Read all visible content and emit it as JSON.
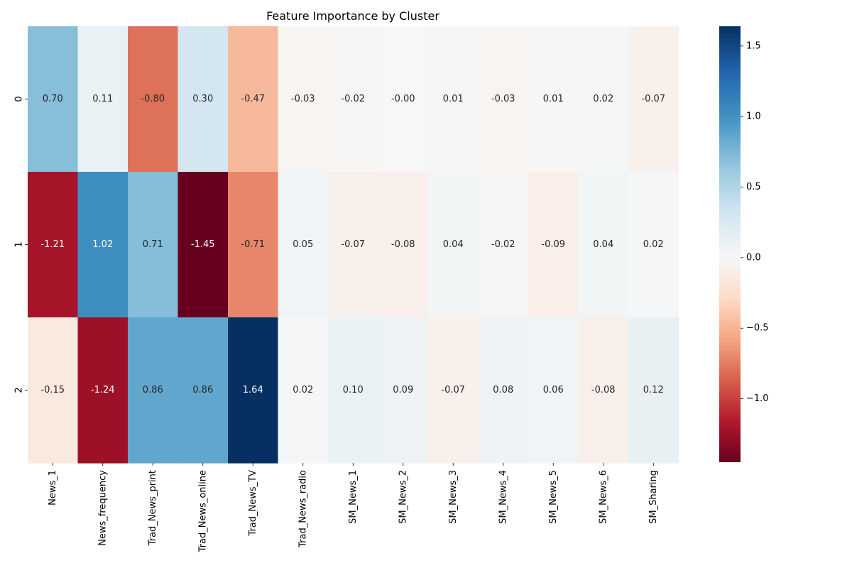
{
  "chart_data": {
    "type": "heatmap",
    "title": "Feature Importance by Cluster",
    "xlabel": "",
    "ylabel": "",
    "columns": [
      "News_1",
      "News_frequency",
      "Trad_News_print",
      "Trad_News_online",
      "Trad_News_TV",
      "Trad_News_radio",
      "SM_News_1",
      "SM_News_2",
      "SM_News_3",
      "SM_News_4",
      "SM_News_5",
      "SM_News_6",
      "SM_Sharing"
    ],
    "rows": [
      "0",
      "1",
      "2"
    ],
    "values": [
      [
        0.7,
        0.11,
        -0.8,
        0.3,
        -0.47,
        -0.03,
        -0.02,
        -0.0,
        0.01,
        -0.03,
        0.01,
        0.02,
        -0.07
      ],
      [
        -1.21,
        1.02,
        0.71,
        -1.45,
        -0.71,
        0.05,
        -0.07,
        -0.08,
        0.04,
        -0.02,
        -0.09,
        0.04,
        0.02
      ],
      [
        -0.15,
        -1.24,
        0.86,
        0.86,
        1.64,
        0.02,
        0.1,
        0.09,
        -0.07,
        0.08,
        0.06,
        -0.08,
        0.12
      ]
    ],
    "annotations": [
      [
        "0.70",
        "0.11",
        "-0.80",
        "0.30",
        "-0.47",
        "-0.03",
        "-0.02",
        "-0.00",
        "0.01",
        "-0.03",
        "0.01",
        "0.02",
        "-0.07"
      ],
      [
        "-1.21",
        "1.02",
        "0.71",
        "-1.45",
        "-0.71",
        "0.05",
        "-0.07",
        "-0.08",
        "0.04",
        "-0.02",
        "-0.09",
        "0.04",
        "0.02"
      ],
      [
        "-0.15",
        "-1.24",
        "0.86",
        "0.86",
        "1.64",
        "0.02",
        "0.10",
        "0.09",
        "-0.07",
        "0.08",
        "0.06",
        "-0.08",
        "0.12"
      ]
    ],
    "colormap": "RdBu",
    "center": 0.0,
    "vmin": -1.45,
    "vmax": 1.64,
    "colorbar_ticks": [
      1.5,
      1.0,
      0.5,
      0.0,
      -0.5,
      -1.0
    ],
    "colorbar_tick_labels": [
      "1.5",
      "1.0",
      "0.5",
      "0.0",
      "−0.5",
      "−1.0"
    ],
    "legend": "colorbar-right",
    "grid": false
  }
}
